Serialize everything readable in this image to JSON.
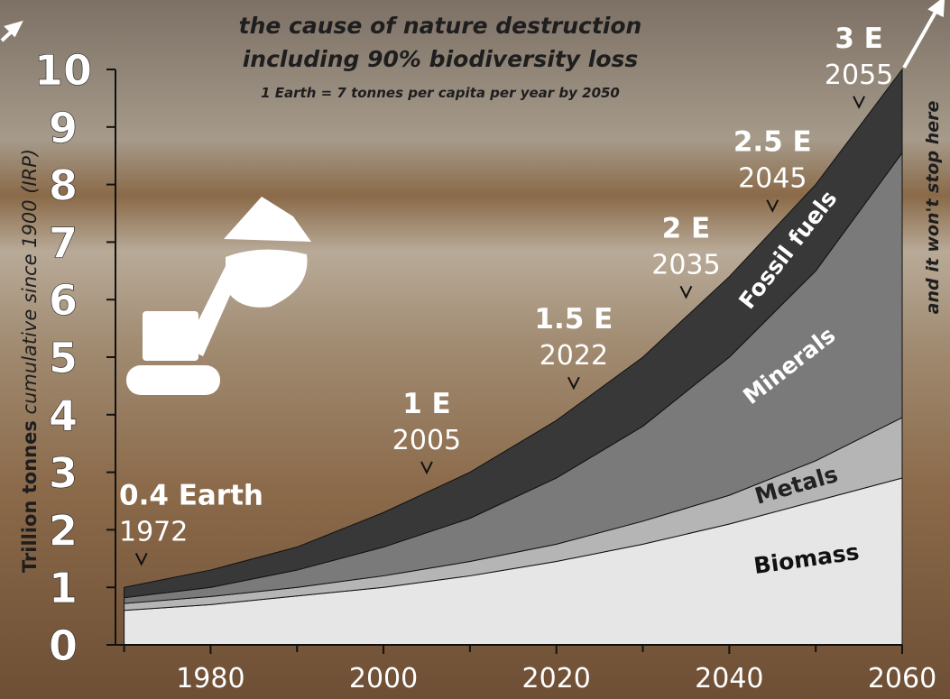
{
  "chart_data": {
    "type": "stacked_area",
    "title": "the cause of nature destruction",
    "title_line2": "including 90% biodiversity loss",
    "subtitle": "1 Earth = 7 tonnes per capita per year by 2050",
    "y_label": "Trillion tonnes",
    "y_label_note": "cumulative since 1900 (IRP)",
    "side_note": "and it won't stop here",
    "x": [
      1970,
      1980,
      1990,
      2000,
      2010,
      2020,
      2030,
      2040,
      2050,
      2060
    ],
    "series": [
      {
        "name": "Biomass",
        "color": "#e6e6e6",
        "values": [
          0.6,
          0.7,
          0.85,
          1.0,
          1.2,
          1.45,
          1.75,
          2.1,
          2.5,
          2.9
        ]
      },
      {
        "name": "Metals",
        "color": "#b5b5b5",
        "values": [
          0.12,
          0.14,
          0.15,
          0.2,
          0.25,
          0.3,
          0.4,
          0.5,
          0.7,
          1.05
        ]
      },
      {
        "name": "Minerals",
        "color": "#7a7a7a",
        "values": [
          0.1,
          0.16,
          0.3,
          0.5,
          0.75,
          1.15,
          1.65,
          2.4,
          3.3,
          4.6
        ]
      },
      {
        "name": "Fossil fuels",
        "color": "#383838",
        "values": [
          0.18,
          0.3,
          0.4,
          0.6,
          0.8,
          1.0,
          1.2,
          1.4,
          1.5,
          1.45
        ]
      }
    ],
    "xlim": [
      1969,
      2060
    ],
    "xticks": [
      1980,
      2000,
      2020,
      2040,
      2060
    ],
    "xminorticks": [
      1970,
      1990,
      2010,
      2030,
      2050
    ],
    "ylim": [
      0,
      10
    ],
    "yticks": [
      0,
      1,
      2,
      3,
      4,
      5,
      6,
      7,
      8,
      9,
      10
    ],
    "annotations": [
      {
        "text": "0.4 Earth",
        "x": 1972
      },
      {
        "text": "1 E",
        "x": 2005
      },
      {
        "text": "1.5 E",
        "x": 2022
      },
      {
        "text": "2 E",
        "x": 2035
      },
      {
        "text": "2.5 E",
        "x": 2045
      },
      {
        "text": "3 E",
        "x": 2055
      }
    ]
  }
}
